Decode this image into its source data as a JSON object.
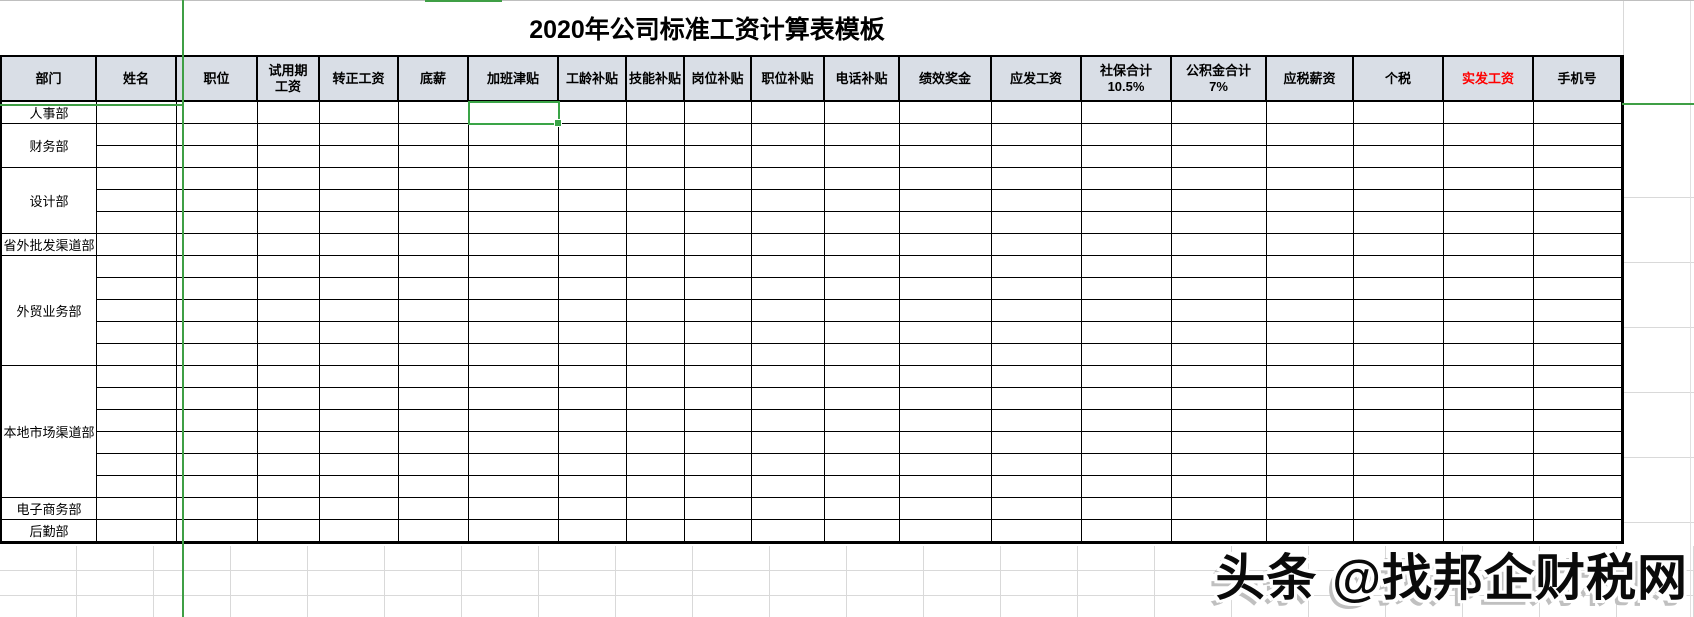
{
  "title": "2020年公司标准工资计算表模板",
  "watermark": {
    "text": "头条 @找邦企财税网"
  },
  "colors": {
    "header_bg": "#d9dee6",
    "grid_black": "#000000",
    "guide_green": "#3f9f45",
    "net_pay_red": "#ff0000",
    "faint_grid": "#d9d9d9"
  },
  "table": {
    "headers": [
      {
        "label": "部门"
      },
      {
        "label": "姓名"
      },
      {
        "label": "职位"
      },
      {
        "label": "试用期工资",
        "lines": [
          "试用期",
          "工资"
        ]
      },
      {
        "label": "转正工资"
      },
      {
        "label": "底薪"
      },
      {
        "label": "加班津贴"
      },
      {
        "label": "工龄补贴"
      },
      {
        "label": "技能补贴"
      },
      {
        "label": "岗位补贴"
      },
      {
        "label": "职位补贴"
      },
      {
        "label": "电话补贴"
      },
      {
        "label": "绩效奖金"
      },
      {
        "label": "应发工资"
      },
      {
        "label": "社保合计 10.5%",
        "lines": [
          "社保合计",
          "10.5%"
        ]
      },
      {
        "label": "公积金合计 7%",
        "lines": [
          "公积金合计",
          "7%"
        ]
      },
      {
        "label": "应税薪资"
      },
      {
        "label": "个税"
      },
      {
        "label": "实发工资",
        "color": "#ff0000"
      },
      {
        "label": "手机号"
      }
    ],
    "groups": [
      {
        "label": "人事部",
        "rows": 1
      },
      {
        "label": "财务部",
        "rows": 2
      },
      {
        "label": "设计部",
        "rows": 3
      },
      {
        "label": "省外批发渠道部",
        "rows": 1
      },
      {
        "label": "外贸业务部",
        "rows": 5
      },
      {
        "label": "本地市场渠道部",
        "rows": 6
      },
      {
        "label": "电子商务部",
        "rows": 1
      },
      {
        "label": "后勤部",
        "rows": 1
      }
    ],
    "body_values": "all data cells are empty",
    "selection": {
      "department": "人事部",
      "column": "加班津贴",
      "row_in_group": 1
    }
  }
}
